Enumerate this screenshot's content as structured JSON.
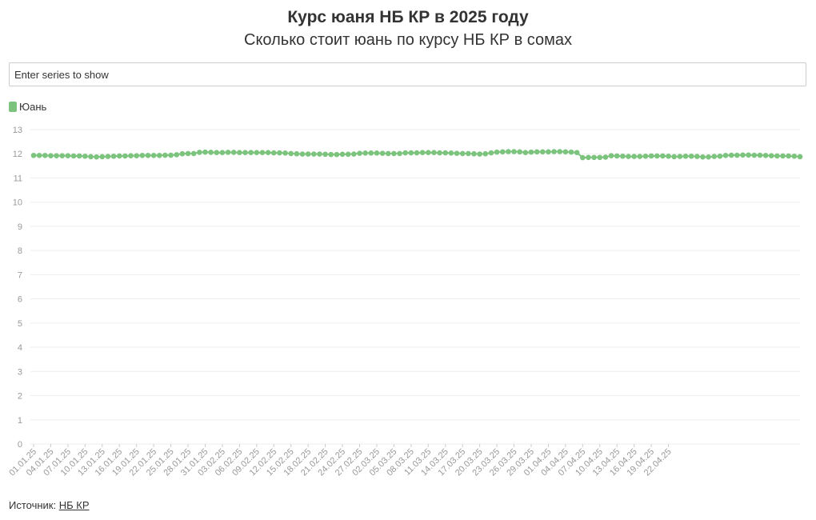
{
  "title": "Курс юаня НБ КР в 2025 году",
  "subtitle": "Сколько стоит юань по курсу НБ КР в сомах",
  "search": {
    "placeholder": "Enter series to show"
  },
  "source": {
    "label": "Источник:",
    "link_text": "НБ КР"
  },
  "colors": {
    "series": "#7cc47e",
    "grid": "#eeeeee",
    "tick": "#999999"
  },
  "chart_data": {
    "type": "line",
    "title": "Курс юаня НБ КР в 2025 году",
    "subtitle": "Сколько стоит юань по курсу НБ КР в сомах",
    "ylim": [
      0,
      13
    ],
    "yticks": [
      0,
      1,
      2,
      3,
      4,
      5,
      6,
      7,
      8,
      9,
      10,
      11,
      12,
      13
    ],
    "grid": true,
    "legend_position": "top-left",
    "xticks": [
      "01.01.25",
      "04.01.25",
      "07.01.25",
      "10.01.25",
      "13.01.25",
      "16.01.25",
      "19.01.25",
      "22.01.25",
      "25.01.25",
      "28.01.25",
      "31.01.25",
      "03.02.25",
      "06.02.25",
      "09.02.25",
      "12.02.25",
      "15.02.25",
      "18.02.25",
      "21.02.25",
      "24.02.25",
      "27.02.25",
      "02.03.25",
      "05.03.25",
      "08.03.25",
      "11.03.25",
      "14.03.25",
      "17.03.25",
      "20.03.25",
      "23.03.25",
      "26.03.25",
      "29.03.25",
      "01.04.25",
      "04.04.25",
      "07.04.25",
      "10.04.25",
      "13.04.25",
      "16.04.25",
      "19.04.25",
      "22.04.25"
    ],
    "series": [
      {
        "name": "Юань",
        "color": "#7cc47e",
        "start_date": "01.01.25",
        "values": [
          11.93,
          11.93,
          11.93,
          11.92,
          11.92,
          11.92,
          11.92,
          11.91,
          11.91,
          11.9,
          11.88,
          11.87,
          11.88,
          11.89,
          11.9,
          11.91,
          11.91,
          11.92,
          11.92,
          11.93,
          11.93,
          11.93,
          11.93,
          11.94,
          11.94,
          11.96,
          12.0,
          12.01,
          12.01,
          12.06,
          12.07,
          12.06,
          12.05,
          12.05,
          12.06,
          12.06,
          12.05,
          12.05,
          12.05,
          12.05,
          12.05,
          12.05,
          12.04,
          12.04,
          12.03,
          12.01,
          12.0,
          11.99,
          11.99,
          11.99,
          11.99,
          11.98,
          11.97,
          11.97,
          11.98,
          11.98,
          11.99,
          12.02,
          12.03,
          12.03,
          12.03,
          12.02,
          12.01,
          12.01,
          12.01,
          12.04,
          12.04,
          12.04,
          12.05,
          12.05,
          12.05,
          12.04,
          12.04,
          12.03,
          12.02,
          12.01,
          12.01,
          12.0,
          11.99,
          12.0,
          12.04,
          12.07,
          12.08,
          12.09,
          12.09,
          12.08,
          12.05,
          12.07,
          12.08,
          12.08,
          12.08,
          12.09,
          12.09,
          12.08,
          12.07,
          12.05,
          11.84,
          11.85,
          11.85,
          11.85,
          11.86,
          11.92,
          11.91,
          11.9,
          11.89,
          11.89,
          11.89,
          11.9,
          11.91,
          11.91,
          11.91,
          11.9,
          11.88,
          11.89,
          11.9,
          11.9,
          11.89,
          11.87,
          11.87,
          11.89,
          11.9,
          11.93,
          11.94,
          11.94,
          11.95,
          11.95,
          11.94,
          11.94,
          11.93,
          11.92,
          11.91,
          11.91,
          11.91,
          11.9,
          11.88
        ]
      }
    ]
  }
}
